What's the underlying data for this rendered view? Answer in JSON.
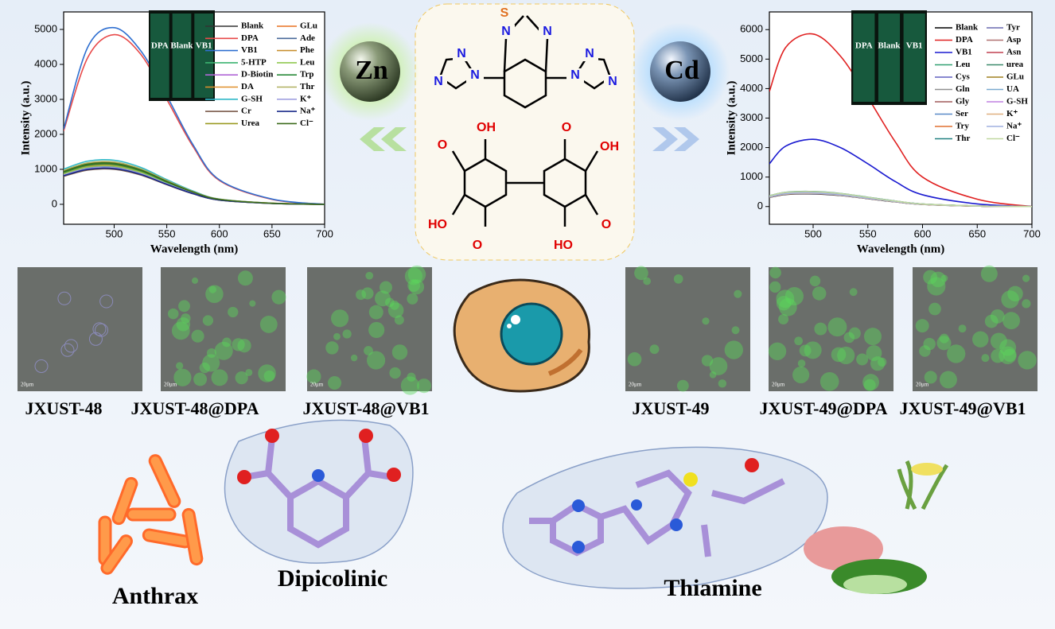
{
  "chart_data": [
    {
      "type": "line",
      "x_label": "Wavelength (nm)",
      "y_label": "Intensity (a.u.)",
      "x": [
        452,
        475,
        500,
        525,
        550,
        575,
        600,
        650,
        700
      ],
      "xlim": [
        452,
        700
      ],
      "xticks": [
        500,
        550,
        600,
        650,
        700
      ],
      "ylim": [
        -570,
        5500
      ],
      "yticks": [
        0,
        1000,
        2000,
        3000,
        4000,
        5000
      ],
      "inset_labels": [
        "DPA",
        "Blank",
        "VB1"
      ],
      "series": [
        {
          "name": "Blank",
          "color": "#333333",
          "values": [
            824,
            1009,
            1030,
            865,
            577,
            309,
            124,
            26,
            0
          ]
        },
        {
          "name": "DPA",
          "color": "#e84a4a",
          "values": [
            2100,
            4200,
            4850,
            4300,
            3000,
            1650,
            680,
            140,
            0
          ]
        },
        {
          "name": "VB1",
          "color": "#2f6fd0",
          "values": [
            2150,
            4500,
            5050,
            4400,
            3100,
            1700,
            700,
            150,
            0
          ]
        },
        {
          "name": "5-HTP",
          "color": "#3cb371",
          "values": [
            920,
            1127,
            1150,
            966,
            644,
            345,
            138,
            29,
            0
          ]
        },
        {
          "name": "D-Biotin",
          "color": "#b067d6",
          "values": [
            864,
            1058,
            1080,
            907,
            605,
            324,
            130,
            27,
            0
          ]
        },
        {
          "name": "DA",
          "color": "#e0902c",
          "values": [
            880,
            1078,
            1100,
            924,
            616,
            330,
            132,
            28,
            0
          ]
        },
        {
          "name": "G-SH",
          "color": "#2eb8c8",
          "values": [
            1008,
            1235,
            1260,
            1058,
            706,
            378,
            151,
            32,
            0
          ]
        },
        {
          "name": "Cr",
          "color": "#7a5a4a",
          "values": [
            800,
            980,
            1000,
            840,
            560,
            300,
            120,
            25,
            0
          ]
        },
        {
          "name": "Urea",
          "color": "#9a9a20",
          "values": [
            960,
            1176,
            1200,
            1008,
            672,
            360,
            144,
            30,
            0
          ]
        },
        {
          "name": "GLu",
          "color": "#e87020",
          "values": [
            896,
            1098,
            1120,
            941,
            627,
            336,
            134,
            28,
            0
          ]
        },
        {
          "name": "Ade",
          "color": "#4a6a9a",
          "values": [
            848,
            1039,
            1060,
            890,
            594,
            318,
            127,
            27,
            0
          ]
        },
        {
          "name": "Phe",
          "color": "#c89030",
          "values": [
            944,
            1156,
            1180,
            991,
            661,
            354,
            142,
            30,
            0
          ]
        },
        {
          "name": "Leu",
          "color": "#90c850",
          "values": [
            872,
            1068,
            1090,
            916,
            610,
            327,
            131,
            27,
            0
          ]
        },
        {
          "name": "Trp",
          "color": "#2a8a3a",
          "values": [
            912,
            1117,
            1140,
            958,
            638,
            342,
            137,
            29,
            0
          ]
        },
        {
          "name": "Thr",
          "color": "#b0b060",
          "values": [
            968,
            1186,
            1210,
            1016,
            678,
            363,
            145,
            30,
            0
          ]
        },
        {
          "name": "K⁺",
          "color": "#a0a0e0",
          "values": [
            840,
            1029,
            1050,
            882,
            588,
            315,
            126,
            26,
            0
          ]
        },
        {
          "name": "Na⁺",
          "color": "#1a2a8a",
          "values": [
            816,
            1000,
            1020,
            857,
            571,
            306,
            122,
            26,
            0
          ]
        },
        {
          "name": "Cl⁻",
          "color": "#3a6a1a",
          "values": [
            936,
            1147,
            1170,
            983,
            655,
            351,
            140,
            29,
            0
          ]
        }
      ]
    },
    {
      "type": "line",
      "x_label": "Wavelength (nm)",
      "y_label": "Intensity (a.u.)",
      "x": [
        460,
        475,
        500,
        525,
        550,
        575,
        600,
        650,
        700
      ],
      "xlim": [
        460,
        700
      ],
      "xticks": [
        500,
        550,
        600,
        650,
        700
      ],
      "ylim": [
        -600,
        6600
      ],
      "yticks": [
        0,
        1000,
        2000,
        3000,
        4000,
        5000,
        6000
      ],
      "inset_labels": [
        "DPA",
        "Blank",
        "VB1"
      ],
      "series": [
        {
          "name": "Blank",
          "color": "#000000",
          "values": [
            310,
            409,
            430,
            374,
            267,
            159,
            73,
            17,
            0
          ]
        },
        {
          "name": "DPA",
          "color": "#e02020",
          "values": [
            3900,
            5400,
            5850,
            5100,
            3700,
            2200,
            1000,
            250,
            0
          ]
        },
        {
          "name": "VB1",
          "color": "#1a1ad0",
          "values": [
            1450,
            2050,
            2280,
            2000,
            1450,
            850,
            400,
            90,
            0
          ]
        },
        {
          "name": "Leu",
          "color": "#30a070",
          "values": [
            346,
            456,
            480,
            418,
            298,
            178,
            82,
            19,
            0
          ]
        },
        {
          "name": "Cys",
          "color": "#6060c0",
          "values": [
            331,
            437,
            460,
            400,
            285,
            170,
            78,
            18,
            0
          ]
        },
        {
          "name": "Gln",
          "color": "#909090",
          "values": [
            360,
            475,
            500,
            435,
            310,
            185,
            85,
            20,
            0
          ]
        },
        {
          "name": "Gly",
          "color": "#a05a5a",
          "values": [
            338,
            447,
            470,
            409,
            291,
            174,
            80,
            19,
            0
          ]
        },
        {
          "name": "Ser",
          "color": "#5a8ac8",
          "values": [
            353,
            466,
            490,
            426,
            304,
            181,
            83,
            20,
            0
          ]
        },
        {
          "name": "Try",
          "color": "#e07030",
          "values": [
            324,
            428,
            450,
            392,
            279,
            167,
            77,
            18,
            0
          ]
        },
        {
          "name": "Thr",
          "color": "#208080",
          "values": [
            367,
            485,
            510,
            444,
            316,
            189,
            87,
            20,
            0
          ]
        },
        {
          "name": "Tyr",
          "color": "#6a6ab0",
          "values": [
            317,
            418,
            440,
            383,
            273,
            163,
            75,
            18,
            0
          ]
        },
        {
          "name": "Asp",
          "color": "#b07070",
          "values": [
            338,
            447,
            470,
            409,
            291,
            174,
            80,
            19,
            0
          ]
        },
        {
          "name": "Asn",
          "color": "#c04050",
          "values": [
            328,
            432,
            455,
            396,
            282,
            168,
            77,
            18,
            0
          ]
        },
        {
          "name": "urea",
          "color": "#3a8a6a",
          "values": [
            349,
            461,
            485,
            422,
            301,
            179,
            82,
            19,
            0
          ]
        },
        {
          "name": "GLu",
          "color": "#a08020",
          "values": [
            335,
            442,
            465,
            405,
            288,
            172,
            79,
            19,
            0
          ]
        },
        {
          "name": "UA",
          "color": "#7aaad0",
          "values": [
            356,
            470,
            495,
            431,
            307,
            183,
            84,
            20,
            0
          ]
        },
        {
          "name": "G-SH",
          "color": "#c080e0",
          "values": [
            342,
            451,
            475,
            413,
            295,
            176,
            81,
            19,
            0
          ]
        },
        {
          "name": "K⁺",
          "color": "#e0b080",
          "values": [
            320,
            423,
            445,
            387,
            276,
            165,
            76,
            18,
            0
          ]
        },
        {
          "name": "Na⁺",
          "color": "#a0b0e0",
          "values": [
            331,
            437,
            460,
            400,
            285,
            170,
            78,
            18,
            0
          ]
        },
        {
          "name": "Cl⁻",
          "color": "#c0d8a0",
          "values": [
            364,
            480,
            505,
            439,
            313,
            187,
            86,
            20,
            0
          ]
        }
      ]
    }
  ],
  "metals": [
    "Zn",
    "Cd"
  ],
  "structure_atoms": [
    "S",
    "N",
    "N",
    "N",
    "N",
    "N",
    "N",
    "N",
    "N",
    "OH",
    "O",
    "OH",
    "O",
    "HO",
    "O",
    "HO",
    "O"
  ],
  "micrographs": [
    {
      "label": "JXUST-48",
      "scale": "20μm"
    },
    {
      "label": "JXUST-48@DPA",
      "scale": "20μm"
    },
    {
      "label": "JXUST-48@VB1",
      "scale": "20μm"
    },
    {
      "label": "JXUST-49",
      "scale": "20μm"
    },
    {
      "label": "JXUST-49@DPA",
      "scale": "20μm"
    },
    {
      "label": "JXUST-49@VB1",
      "scale": "20μm"
    }
  ],
  "molecules": [
    "Anthrax",
    "Dipicolinic",
    "Thiamine"
  ]
}
